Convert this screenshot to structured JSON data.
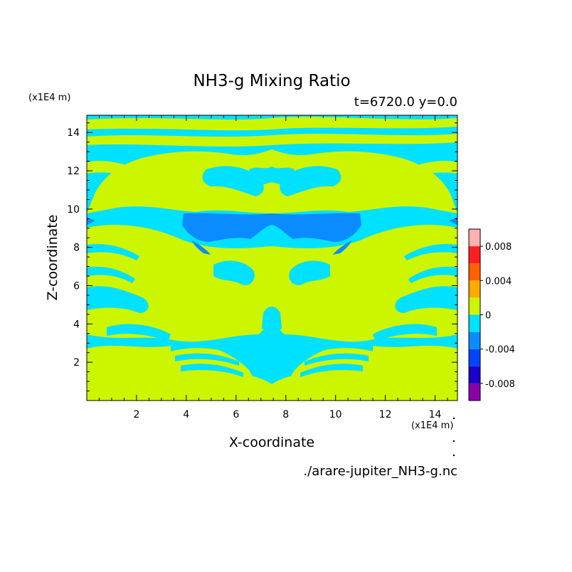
{
  "chart_data": {
    "type": "heatmap",
    "title": "NH3-g Mixing Ratio",
    "subtitle": "t=6720.0 y=0.0",
    "xlabel": "X-coordinate",
    "ylabel": "Z-coordinate",
    "x_unit": "(x1E4 m)",
    "y_unit": "(x1E4 m)",
    "xlim": [
      0,
      14.9
    ],
    "ylim": [
      0,
      14.9
    ],
    "x_ticks": [
      2,
      4,
      6,
      8,
      10,
      12,
      14
    ],
    "y_ticks": [
      2,
      4,
      6,
      8,
      10,
      12,
      14
    ],
    "x_tick_labels": [
      "2",
      "4",
      "6",
      "8",
      "10",
      "12",
      "14"
    ],
    "y_tick_labels": [
      "2",
      "4",
      "6",
      "8",
      "10",
      "12",
      "14"
    ],
    "footer": "./arare-jupiter_NH3-g.nc",
    "colorbar": {
      "levels": [
        -0.01,
        -0.008,
        -0.006,
        -0.004,
        -0.002,
        0,
        0.002,
        0.004,
        0.006,
        0.008,
        0.01
      ],
      "colors": [
        "#8a00a8",
        "#1a00c8",
        "#0044ff",
        "#0a8cff",
        "#00e0ff",
        "#ccf500",
        "#ffaa00",
        "#ff6000",
        "#ff1f1f",
        "#ffb0b0"
      ],
      "tick_values": [
        -0.008,
        -0.004,
        0,
        0.004,
        0.008
      ],
      "tick_labels": [
        "-0.008",
        "-0.004",
        "0",
        "0.004",
        "0.008"
      ]
    },
    "field_colors": {
      "background": "#00e0ff",
      "positive_small": "#ccf500",
      "negative_mid": "#0a8cff"
    }
  }
}
